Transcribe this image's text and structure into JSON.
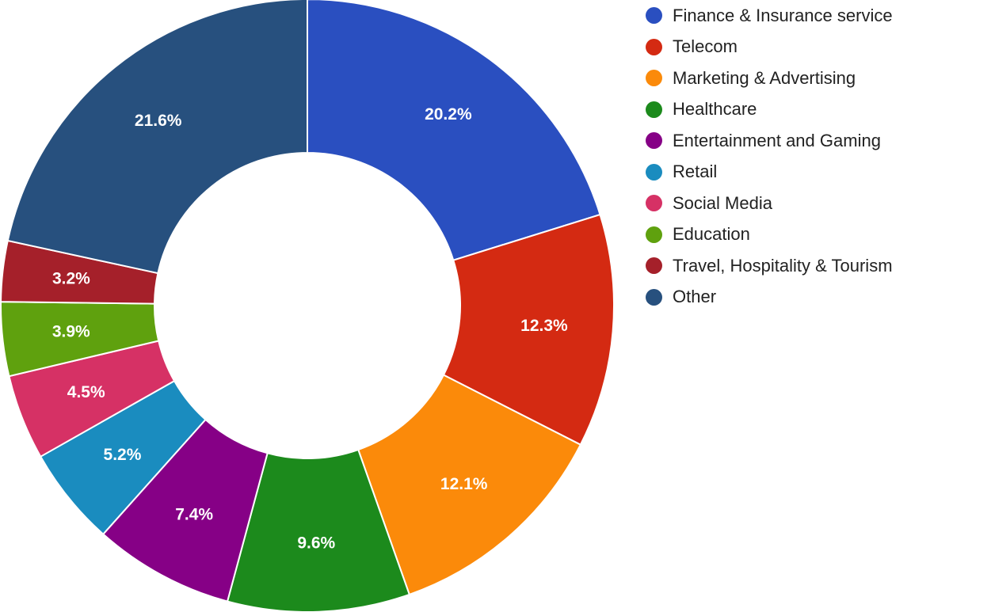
{
  "chart_data": {
    "type": "pie",
    "donut": true,
    "legend_position": "right",
    "slices": [
      {
        "label": "Finance & Insurance service",
        "value": 20.2,
        "display": "20.2%",
        "color": "#2a4fc0"
      },
      {
        "label": "Telecom",
        "value": 12.3,
        "display": "12.3%",
        "color": "#d42a12"
      },
      {
        "label": "Marketing & Advertising",
        "value": 12.1,
        "display": "12.1%",
        "color": "#fb8a0a"
      },
      {
        "label": "Healthcare",
        "value": 9.6,
        "display": "9.6%",
        "color": "#1c8a1c"
      },
      {
        "label": "Entertainment and Gaming",
        "value": 7.4,
        "display": "7.4%",
        "color": "#860086"
      },
      {
        "label": "Retail",
        "value": 5.2,
        "display": "5.2%",
        "color": "#1a8cbf"
      },
      {
        "label": "Social Media",
        "value": 4.5,
        "display": "4.5%",
        "color": "#d63165"
      },
      {
        "label": "Education",
        "value": 3.9,
        "display": "3.9%",
        "color": "#5fa10e"
      },
      {
        "label": "Travel, Hospitality & Tourism",
        "value": 3.2,
        "display": "3.2%",
        "color": "#a5202a"
      },
      {
        "label": "Other",
        "value": 21.6,
        "display": "21.6%",
        "color": "#27507e"
      }
    ]
  }
}
